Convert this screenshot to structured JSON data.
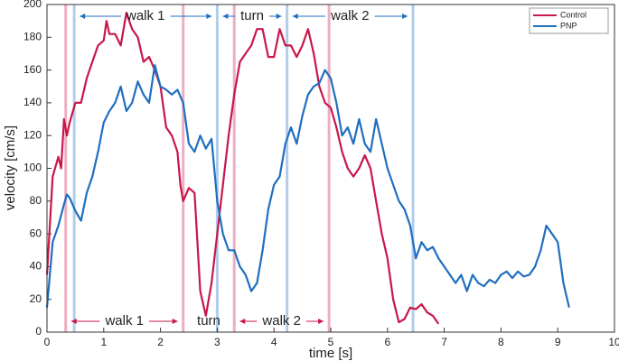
{
  "chart_data": {
    "type": "line",
    "xlabel": "time [s]",
    "ylabel": "velocity [cm/s]",
    "xlim": [
      0,
      10
    ],
    "xticks": [
      0,
      1,
      2,
      3,
      4,
      5,
      6,
      7,
      8,
      9,
      10
    ],
    "ylim": [
      0,
      200
    ],
    "yticks": [
      0,
      20,
      40,
      60,
      80,
      100,
      120,
      140,
      160,
      180,
      200
    ],
    "grid": false,
    "legend": "upper right",
    "series": [
      {
        "name": "Control",
        "color": "#c8174a",
        "phase_row": "bottom",
        "events": [
          0.33,
          2.4,
          3.3,
          4.97
        ],
        "phase_labels": [
          "walk 1",
          "turn",
          "walk 2"
        ],
        "x": [
          0,
          0.1,
          0.2,
          0.25,
          0.3,
          0.35,
          0.4,
          0.5,
          0.6,
          0.7,
          0.8,
          0.9,
          1.0,
          1.05,
          1.1,
          1.2,
          1.3,
          1.4,
          1.5,
          1.6,
          1.7,
          1.8,
          1.9,
          2.0,
          2.1,
          2.2,
          2.3,
          2.35,
          2.4,
          2.5,
          2.6,
          2.7,
          2.8,
          2.9,
          3.0,
          3.1,
          3.2,
          3.3,
          3.4,
          3.5,
          3.6,
          3.7,
          3.8,
          3.9,
          4.0,
          4.1,
          4.2,
          4.3,
          4.4,
          4.5,
          4.6,
          4.7,
          4.8,
          4.9,
          5.0,
          5.1,
          5.2,
          5.3,
          5.4,
          5.5,
          5.6,
          5.7,
          5.8,
          5.9,
          6.0,
          6.1,
          6.2,
          6.3,
          6.4,
          6.5,
          6.6,
          6.7,
          6.8,
          6.9
        ],
        "values": [
          35,
          95,
          107,
          100,
          130,
          120,
          128,
          140,
          140,
          155,
          165,
          175,
          178,
          190,
          182,
          182,
          175,
          195,
          185,
          180,
          165,
          168,
          160,
          150,
          125,
          120,
          110,
          90,
          80,
          88,
          85,
          25,
          10,
          30,
          60,
          90,
          120,
          145,
          165,
          170,
          175,
          185,
          185,
          168,
          168,
          185,
          175,
          175,
          168,
          175,
          185,
          170,
          150,
          140,
          137,
          125,
          110,
          100,
          95,
          100,
          108,
          100,
          80,
          60,
          45,
          20,
          6,
          8,
          15,
          14,
          17,
          12,
          10,
          5
        ]
      },
      {
        "name": "PNP",
        "color": "#1f6fc0",
        "phase_row": "top",
        "events": [
          0.48,
          3.0,
          4.23,
          6.45
        ],
        "phase_labels": [
          "walk 1",
          "turn",
          "walk 2"
        ],
        "x": [
          0,
          0.1,
          0.2,
          0.3,
          0.35,
          0.4,
          0.5,
          0.6,
          0.7,
          0.8,
          0.9,
          1.0,
          1.1,
          1.2,
          1.3,
          1.4,
          1.5,
          1.6,
          1.7,
          1.8,
          1.9,
          2.0,
          2.1,
          2.2,
          2.3,
          2.4,
          2.5,
          2.6,
          2.7,
          2.8,
          2.9,
          3.0,
          3.1,
          3.2,
          3.3,
          3.4,
          3.5,
          3.6,
          3.7,
          3.8,
          3.9,
          4.0,
          4.1,
          4.2,
          4.3,
          4.4,
          4.5,
          4.6,
          4.7,
          4.8,
          4.9,
          5.0,
          5.1,
          5.2,
          5.3,
          5.4,
          5.5,
          5.6,
          5.7,
          5.8,
          5.9,
          6.0,
          6.1,
          6.2,
          6.3,
          6.4,
          6.5,
          6.6,
          6.7,
          6.8,
          6.9,
          7.0,
          7.1,
          7.2,
          7.3,
          7.4,
          7.5,
          7.6,
          7.7,
          7.8,
          7.9,
          8.0,
          8.1,
          8.2,
          8.3,
          8.4,
          8.5,
          8.6,
          8.7,
          8.8,
          8.9,
          9.0,
          9.1,
          9.2
        ],
        "values": [
          15,
          55,
          65,
          78,
          84,
          82,
          74,
          68,
          85,
          95,
          110,
          128,
          135,
          140,
          150,
          135,
          140,
          153,
          145,
          140,
          163,
          150,
          148,
          145,
          148,
          140,
          115,
          110,
          120,
          112,
          118,
          80,
          60,
          50,
          50,
          40,
          35,
          25,
          30,
          50,
          75,
          90,
          95,
          115,
          125,
          115,
          132,
          145,
          150,
          152,
          160,
          155,
          140,
          120,
          125,
          115,
          130,
          115,
          110,
          130,
          115,
          100,
          90,
          80,
          75,
          65,
          45,
          55,
          50,
          52,
          45,
          40,
          35,
          30,
          35,
          25,
          35,
          30,
          28,
          32,
          30,
          35,
          37,
          33,
          37,
          34,
          35,
          40,
          50,
          65,
          60,
          55,
          30,
          15
        ]
      }
    ]
  }
}
